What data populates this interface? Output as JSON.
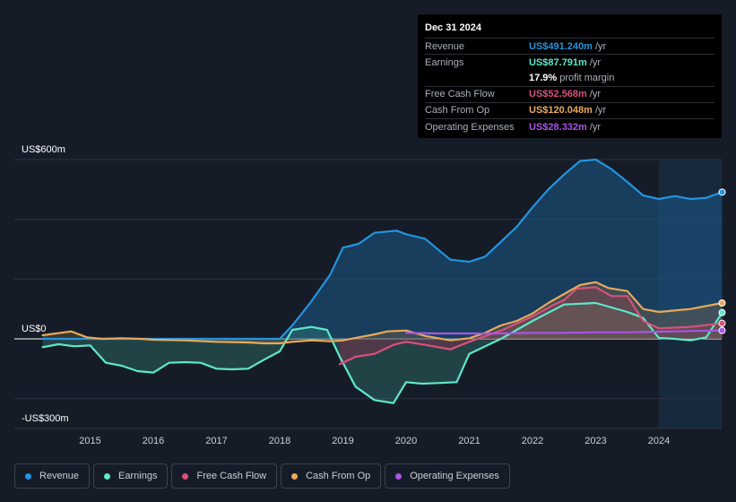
{
  "tooltip": {
    "date": "Dec 31 2024",
    "rows": [
      {
        "label": "Revenue",
        "value": "US$491.240m",
        "unit": "/yr",
        "color": "#2394e0"
      },
      {
        "label": "Earnings",
        "value": "US$87.791m",
        "unit": "/yr",
        "color": "#5ee8c9"
      },
      {
        "label": "",
        "value": "17.9%",
        "unit": "profit margin",
        "color": "#ffffff"
      },
      {
        "label": "Free Cash Flow",
        "value": "US$52.568m",
        "unit": "/yr",
        "color": "#d8517a"
      },
      {
        "label": "Cash From Op",
        "value": "US$120.048m",
        "unit": "/yr",
        "color": "#e8a95b"
      },
      {
        "label": "Operating Expenses",
        "value": "US$28.332m",
        "unit": "/yr",
        "color": "#a855e8"
      }
    ]
  },
  "legend": [
    {
      "label": "Revenue",
      "color": "#2394e0"
    },
    {
      "label": "Earnings",
      "color": "#5ee8c9"
    },
    {
      "label": "Free Cash Flow",
      "color": "#d8517a"
    },
    {
      "label": "Cash From Op",
      "color": "#e8a95b"
    },
    {
      "label": "Operating Expenses",
      "color": "#a855e8"
    }
  ],
  "chart_data": {
    "type": "area",
    "title": "",
    "xlabel": "",
    "ylabel": "",
    "ylim": [
      -300,
      600
    ],
    "y_axis_labels": [
      "US$600m",
      "US$0",
      "-US$300m"
    ],
    "y_axis_values": [
      600,
      0,
      -300
    ],
    "x_ticks": [
      "2015",
      "2016",
      "2017",
      "2018",
      "2019",
      "2020",
      "2021",
      "2022",
      "2023",
      "2024"
    ],
    "x_tick_values": [
      2015,
      2016,
      2017,
      2018,
      2019,
      2020,
      2021,
      2022,
      2023,
      2024
    ],
    "xlim": [
      2014.2,
      2025.0
    ],
    "forecast_start": 2024.0,
    "series": [
      {
        "name": "Revenue",
        "color": "#2394e0",
        "x": [
          2014.25,
          2017.0,
          2018.0,
          2018.2,
          2018.5,
          2018.8,
          2019.0,
          2019.25,
          2019.5,
          2019.85,
          2020.0,
          2020.3,
          2020.7,
          2021.0,
          2021.25,
          2021.5,
          2021.75,
          2022.0,
          2022.25,
          2022.5,
          2022.75,
          2023.0,
          2023.25,
          2023.5,
          2023.75,
          2024.0,
          2024.25,
          2024.5,
          2024.75,
          2025.0
        ],
        "values": [
          0,
          0,
          0,
          45,
          125,
          215,
          305,
          318,
          355,
          362,
          350,
          335,
          265,
          258,
          275,
          325,
          375,
          440,
          500,
          550,
          595,
          600,
          568,
          525,
          480,
          468,
          478,
          468,
          472,
          491
        ]
      },
      {
        "name": "Earnings",
        "color": "#5ee8c9",
        "x": [
          2014.25,
          2014.5,
          2014.75,
          2015.0,
          2015.25,
          2015.5,
          2015.75,
          2016.0,
          2016.25,
          2016.5,
          2016.75,
          2017.0,
          2017.25,
          2017.5,
          2017.75,
          2018.0,
          2018.2,
          2018.5,
          2018.75,
          2018.95,
          2019.2,
          2019.5,
          2019.8,
          2020.0,
          2020.25,
          2020.5,
          2020.8,
          2021.0,
          2021.5,
          2022.0,
          2022.5,
          2023.0,
          2023.5,
          2023.75,
          2024.0,
          2024.25,
          2024.5,
          2024.75,
          2025.0
        ],
        "values": [
          -28,
          -18,
          -25,
          -22,
          -80,
          -90,
          -108,
          -113,
          -80,
          -78,
          -80,
          -100,
          -102,
          -100,
          -70,
          -42,
          30,
          40,
          30,
          -60,
          -160,
          -205,
          -215,
          -145,
          -150,
          -148,
          -145,
          -50,
          0,
          60,
          115,
          120,
          90,
          70,
          3,
          0,
          -5,
          5,
          88
        ]
      },
      {
        "name": "Free Cash Flow",
        "color": "#d8517a",
        "x": [
          2018.95,
          2019.2,
          2019.5,
          2019.8,
          2020.0,
          2020.3,
          2020.7,
          2021.0,
          2021.5,
          2022.0,
          2022.3,
          2022.5,
          2022.7,
          2023.0,
          2023.25,
          2023.5,
          2023.75,
          2024.0,
          2024.5,
          2025.0
        ],
        "values": [
          -85,
          -60,
          -50,
          -20,
          -10,
          -20,
          -35,
          -10,
          28,
          75,
          110,
          130,
          168,
          173,
          143,
          143,
          60,
          35,
          40,
          52
        ]
      },
      {
        "name": "Cash From Op",
        "color": "#e8a95b",
        "x": [
          2014.25,
          2014.7,
          2014.95,
          2015.2,
          2015.5,
          2015.8,
          2016.0,
          2016.5,
          2017.0,
          2017.5,
          2017.75,
          2018.0,
          2018.2,
          2018.5,
          2018.8,
          2019.0,
          2019.25,
          2019.5,
          2019.7,
          2020.0,
          2020.3,
          2020.7,
          2021.0,
          2021.25,
          2021.5,
          2021.75,
          2022.0,
          2022.25,
          2022.5,
          2022.75,
          2023.0,
          2023.2,
          2023.5,
          2023.75,
          2024.0,
          2024.5,
          2025.0
        ],
        "values": [
          12,
          25,
          5,
          0,
          2,
          0,
          -3,
          -5,
          -10,
          -12,
          -15,
          -15,
          -10,
          -5,
          -8,
          -5,
          5,
          15,
          25,
          28,
          10,
          -5,
          2,
          20,
          45,
          60,
          85,
          120,
          150,
          180,
          190,
          170,
          160,
          100,
          90,
          100,
          120
        ]
      },
      {
        "name": "Operating Expenses",
        "color": "#a855e8",
        "x": [
          2020.0,
          2020.5,
          2021.0,
          2021.5,
          2022.0,
          2022.5,
          2023.0,
          2023.5,
          2024.0,
          2024.5,
          2025.0
        ],
        "values": [
          20,
          18,
          18,
          18,
          20,
          20,
          22,
          22,
          24,
          26,
          28
        ]
      }
    ]
  }
}
